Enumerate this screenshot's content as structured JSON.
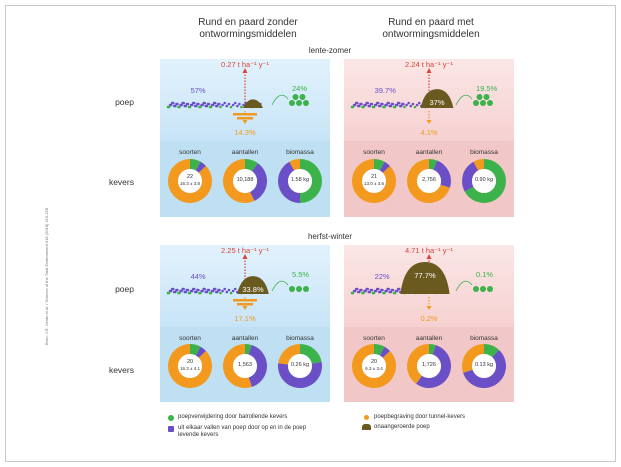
{
  "titles": {
    "left": "Rund en paard zonder ontwormingsmiddelen",
    "right": "Rund en paard met ontwormingsmiddelen"
  },
  "seasons": {
    "spring": "lente-zomer",
    "autumn": "herfst-winter"
  },
  "rows": {
    "dung": "poep",
    "beetles": "kevers"
  },
  "donut_labels": {
    "species": "soorten",
    "abundance": "aantallen",
    "biomass": "biomassa"
  },
  "colors": {
    "green": "#3bb24a",
    "purple": "#6a4fc7",
    "orange": "#f39a1e",
    "brown": "#6a5a1f",
    "blue_panel": "#cbe6f8",
    "pink_panel": "#f7d4d4"
  },
  "panels": [
    {
      "id": "spring-without",
      "emission": "0.27 t ha⁻¹ y⁻¹",
      "pct_left": "57%",
      "pct_mid": "",
      "pct_right": "24%",
      "pct_down": "14.3%",
      "dung_fraction": 0.05,
      "donuts": [
        {
          "label": "22\n16.3 ± 3.8",
          "text1": "22",
          "text2": "16.3 ± 3.8",
          "green": 0.08,
          "purple": 0.05,
          "orange": 0.87
        },
        {
          "label": "10,188",
          "text1": "10,188",
          "text2": "",
          "green": 0.1,
          "purple": 0.33,
          "orange": 0.57
        },
        {
          "label": "1.58 kg",
          "text1": "1.58 kg",
          "text2": "",
          "green": 0.5,
          "purple": 0.42,
          "orange": 0.08
        }
      ]
    },
    {
      "id": "spring-with",
      "emission": "2.24 t ha⁻¹ y⁻¹",
      "pct_left": "39.7%",
      "pct_mid": "37%",
      "pct_right": "19.5%",
      "pct_down": "4.1%",
      "dung_fraction": 0.37,
      "donuts": [
        {
          "text1": "21",
          "text2": "13.0 ± 3.6",
          "green": 0.08,
          "purple": 0.05,
          "orange": 0.87
        },
        {
          "text1": "2,756",
          "text2": "",
          "green": 0.06,
          "purple": 0.24,
          "orange": 0.7
        },
        {
          "text1": "0.90 kg",
          "text2": "",
          "green": 0.67,
          "purple": 0.25,
          "orange": 0.08
        }
      ]
    },
    {
      "id": "autumn-without",
      "emission": "2.25 t ha⁻¹ y⁻¹",
      "pct_left": "44%",
      "pct_mid": "33.8%",
      "pct_right": "5.5%",
      "pct_down": "17.1%",
      "dung_fraction": 0.34,
      "donuts": [
        {
          "text1": "20",
          "text2": "16.3 ± 4.1",
          "green": 0.08,
          "purple": 0.05,
          "orange": 0.87
        },
        {
          "text1": "1,563",
          "text2": "",
          "green": 0.05,
          "purple": 0.4,
          "orange": 0.55
        },
        {
          "text1": "0.26 kg",
          "text2": "",
          "green": 0.22,
          "purple": 0.55,
          "orange": 0.23
        }
      ]
    },
    {
      "id": "autumn-with",
      "emission": "4.71 t ha⁻¹ y⁻¹",
      "pct_left": "22%",
      "pct_mid": "77.7%",
      "pct_right": "0.1%",
      "pct_down": "0.2%",
      "dung_fraction": 0.78,
      "donuts": [
        {
          "text1": "20",
          "text2": "6.3 ± 3.4",
          "green": 0.08,
          "purple": 0.05,
          "orange": 0.87
        },
        {
          "text1": "1,726",
          "text2": "",
          "green": 0.05,
          "purple": 0.55,
          "orange": 0.4
        },
        {
          "text1": "0.13 kg",
          "text2": "",
          "green": 0.12,
          "purple": 0.58,
          "orange": 0.3
        }
      ]
    }
  ],
  "legend": {
    "green": "poepverwijdering door balrollende kevers",
    "purple": "uit elkaar vallen van poep door op en in de poep levende kevers",
    "orange": "poepbegraving door tunnel-kevers",
    "brown": "onaangeroerde poep"
  },
  "source": "Bron: J.R. Verdú et al. / Science of the Total Environment 618 (2018) 219-228"
}
